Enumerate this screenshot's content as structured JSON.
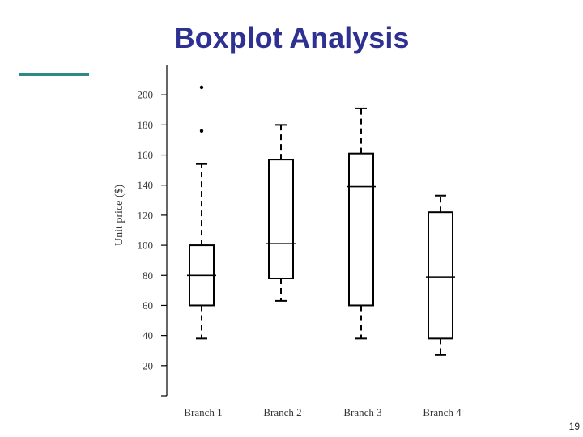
{
  "slide": {
    "title": "Boxplot Analysis",
    "page_number": "19"
  },
  "colors": {
    "title": "#2e3192",
    "accent_rule": "#2e8a86",
    "ink": "#000000"
  },
  "chart_data": {
    "type": "boxplot",
    "title": "",
    "xlabel": "",
    "ylabel": "Unit price ($)",
    "ylim": [
      0,
      220
    ],
    "yticks": [
      20,
      40,
      60,
      80,
      100,
      120,
      140,
      160,
      180,
      200
    ],
    "grid": false,
    "categories": [
      "Branch 1",
      "Branch 2",
      "Branch 3",
      "Branch 4"
    ],
    "boxes": [
      {
        "category": "Branch 1",
        "whisker_low": 38,
        "q1": 60,
        "median": 80,
        "q3": 100,
        "whisker_high": 154,
        "outliers": [
          176,
          205
        ]
      },
      {
        "category": "Branch 2",
        "whisker_low": 63,
        "q1": 78,
        "median": 101,
        "q3": 157,
        "whisker_high": 180,
        "outliers": []
      },
      {
        "category": "Branch 3",
        "whisker_low": 38,
        "q1": 60,
        "median": 139,
        "q3": 161,
        "whisker_high": 191,
        "outliers": []
      },
      {
        "category": "Branch 4",
        "whisker_low": 27,
        "q1": 38,
        "median": 79,
        "q3": 122,
        "whisker_high": 133,
        "outliers": []
      }
    ]
  }
}
